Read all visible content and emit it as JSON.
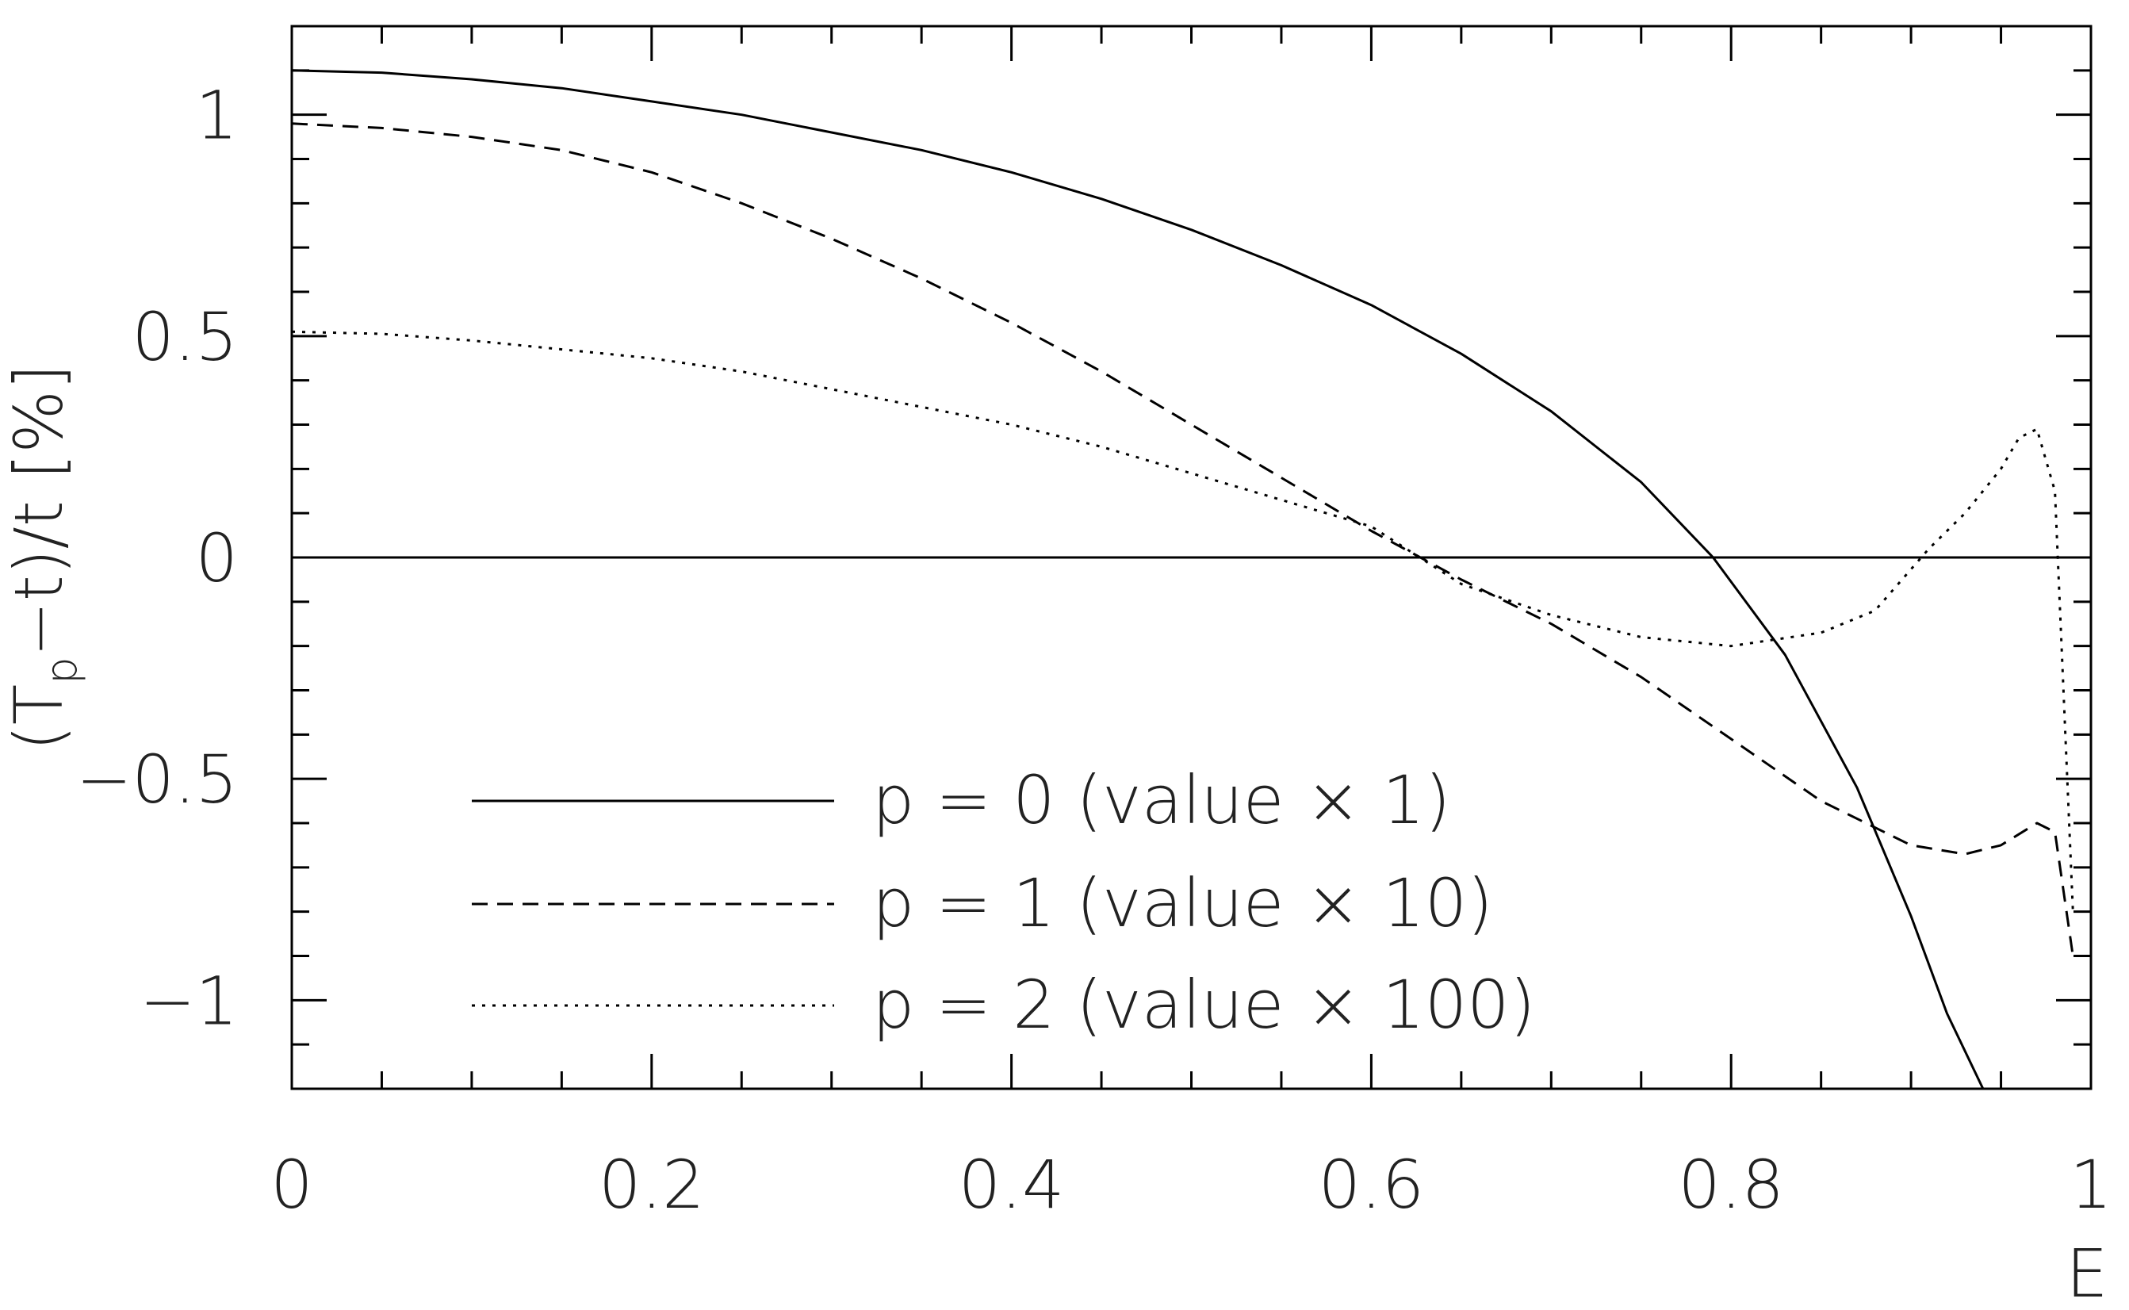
{
  "chart_data": {
    "type": "line",
    "title": "",
    "xlabel": "E",
    "ylabel": "(T_p−t)/t [%]",
    "ylabel_parts": {
      "open": "(T",
      "sub": "p",
      "rest": "−t)/t [%]"
    },
    "xlim": [
      0,
      1
    ],
    "ylim": [
      -1.2,
      1.2
    ],
    "grid": false,
    "legend_position": "bottom-center",
    "x_ticks": [
      {
        "value": 0,
        "label": "0"
      },
      {
        "value": 0.2,
        "label": "0.2"
      },
      {
        "value": 0.4,
        "label": "0.4"
      },
      {
        "value": 0.6,
        "label": "0.6"
      },
      {
        "value": 0.8,
        "label": "0.8"
      },
      {
        "value": 1,
        "label": "1"
      }
    ],
    "y_ticks": [
      {
        "value": -1,
        "label": "−1"
      },
      {
        "value": -0.5,
        "label": "−0.5"
      },
      {
        "value": 0,
        "label": "0"
      },
      {
        "value": 0.5,
        "label": "0.5"
      },
      {
        "value": 1,
        "label": "1"
      }
    ],
    "reference_line_y": 0,
    "series": [
      {
        "name": "p = 0 (value × 1)",
        "style": "solid",
        "x": [
          0,
          0.05,
          0.1,
          0.15,
          0.2,
          0.25,
          0.3,
          0.35,
          0.4,
          0.45,
          0.5,
          0.55,
          0.6,
          0.65,
          0.7,
          0.75,
          0.79,
          0.83,
          0.87,
          0.9,
          0.92,
          0.94
        ],
        "y": [
          1.1,
          1.095,
          1.08,
          1.06,
          1.03,
          1.0,
          0.96,
          0.92,
          0.87,
          0.81,
          0.74,
          0.66,
          0.57,
          0.46,
          0.33,
          0.17,
          0.0,
          -0.22,
          -0.52,
          -0.81,
          -1.03,
          -1.2
        ]
      },
      {
        "name": "p = 1 (value × 10)",
        "style": "dashed",
        "x": [
          0,
          0.05,
          0.1,
          0.15,
          0.2,
          0.25,
          0.3,
          0.35,
          0.4,
          0.45,
          0.5,
          0.55,
          0.6,
          0.65,
          0.7,
          0.75,
          0.8,
          0.85,
          0.9,
          0.93,
          0.95,
          0.97,
          0.98,
          0.99
        ],
        "y": [
          0.98,
          0.97,
          0.95,
          0.92,
          0.87,
          0.8,
          0.72,
          0.63,
          0.53,
          0.42,
          0.3,
          0.18,
          0.06,
          -0.05,
          -0.15,
          -0.27,
          -0.41,
          -0.55,
          -0.65,
          -0.67,
          -0.65,
          -0.6,
          -0.62,
          -0.9
        ]
      },
      {
        "name": "p = 2 (value × 100)",
        "style": "dotted",
        "x": [
          0,
          0.05,
          0.1,
          0.15,
          0.2,
          0.25,
          0.3,
          0.35,
          0.4,
          0.45,
          0.5,
          0.55,
          0.6,
          0.65,
          0.7,
          0.75,
          0.8,
          0.85,
          0.88,
          0.91,
          0.93,
          0.95,
          0.96,
          0.97,
          0.98,
          0.99
        ],
        "y": [
          0.51,
          0.505,
          0.49,
          0.47,
          0.45,
          0.42,
          0.38,
          0.34,
          0.3,
          0.25,
          0.19,
          0.13,
          0.07,
          -0.06,
          -0.13,
          -0.18,
          -0.2,
          -0.17,
          -0.12,
          0.02,
          0.1,
          0.2,
          0.27,
          0.29,
          0.15,
          -0.8
        ]
      }
    ]
  }
}
